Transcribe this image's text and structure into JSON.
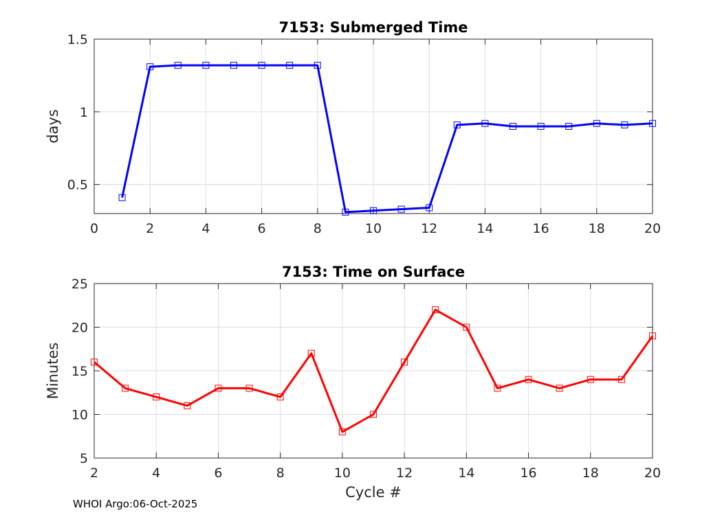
{
  "chart_data": [
    {
      "type": "line",
      "title": "7153: Submerged Time",
      "xlabel": "",
      "ylabel": "days",
      "xlim": [
        0,
        20
      ],
      "ylim": [
        0.3,
        1.5
      ],
      "xticks": [
        0,
        2,
        4,
        6,
        8,
        10,
        12,
        14,
        16,
        18,
        20
      ],
      "yticks": [
        0.5,
        1,
        1.5
      ],
      "ytick_labels": [
        "0.5",
        "1",
        "1.5"
      ],
      "grid": true,
      "color": "#0000ff",
      "marker": "square",
      "series": [
        {
          "x": [
            1,
            2,
            3,
            4,
            5,
            6,
            7,
            8,
            9,
            10,
            11,
            12,
            13,
            14,
            15,
            16,
            17,
            18,
            19,
            20
          ],
          "values": [
            0.41,
            1.31,
            1.32,
            1.32,
            1.32,
            1.32,
            1.32,
            1.32,
            0.31,
            0.32,
            0.33,
            0.34,
            0.91,
            0.92,
            0.9,
            0.9,
            0.9,
            0.92,
            0.91,
            0.92
          ]
        }
      ]
    },
    {
      "type": "line",
      "title": "7153: Time on Surface",
      "xlabel": "Cycle #",
      "ylabel": "Minutes",
      "xlim": [
        2,
        20
      ],
      "ylim": [
        5,
        25
      ],
      "xticks": [
        2,
        4,
        6,
        8,
        10,
        12,
        14,
        16,
        18,
        20
      ],
      "yticks": [
        5,
        10,
        15,
        20,
        25
      ],
      "ytick_labels": [
        "5",
        "10",
        "15",
        "20",
        "25"
      ],
      "grid": true,
      "color": "#ff0000",
      "marker": "square",
      "series": [
        {
          "x": [
            2,
            3,
            4,
            5,
            6,
            7,
            8,
            9,
            10,
            11,
            12,
            13,
            14,
            15,
            16,
            17,
            18,
            19,
            20
          ],
          "values": [
            16,
            13,
            12,
            11,
            13,
            13,
            12,
            17,
            8,
            10,
            16,
            22,
            20,
            13,
            14,
            13,
            14,
            14,
            19
          ]
        }
      ]
    }
  ],
  "footer": "WHOI Argo:06-Oct-2025"
}
